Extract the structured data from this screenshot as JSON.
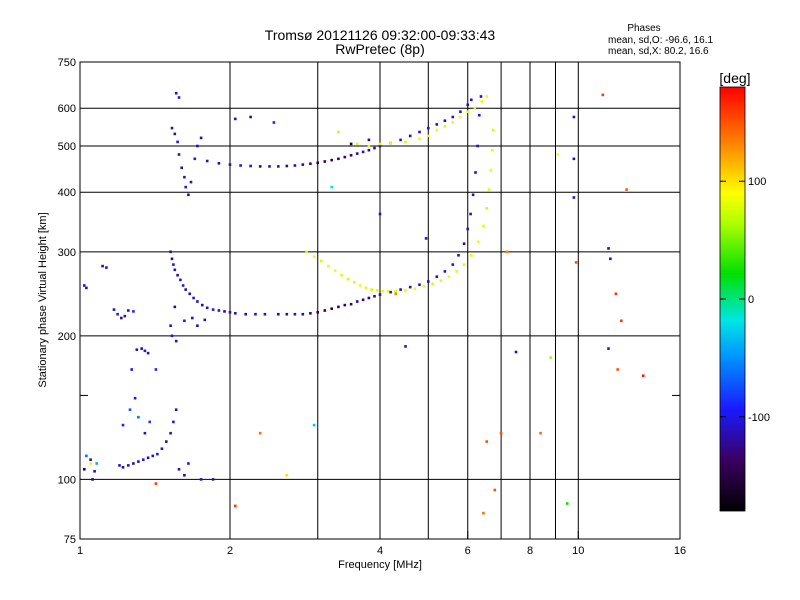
{
  "chart_data": {
    "type": "scatter",
    "title_line1": "Tromsø 20121126 09:32:00-09:33:43",
    "title_line2": "RwPretec (8p)",
    "xlabel": "Frequency [MHz]",
    "ylabel": "Stationary phase Virtual Height [km]",
    "x_scale": "log",
    "y_scale": "log",
    "xlim": [
      1,
      16
    ],
    "ylim": [
      75,
      750
    ],
    "x_ticks": [
      1,
      2,
      4,
      6,
      8,
      10,
      16
    ],
    "x_tick_labels": [
      "1",
      "2",
      "4",
      "6",
      "8",
      "10",
      "16"
    ],
    "x_minor_ticks": [
      3,
      5,
      7,
      9
    ],
    "y_ticks": [
      75,
      100,
      200,
      300,
      400,
      500,
      600,
      750
    ],
    "y_tick_labels": [
      "75",
      "100",
      "200",
      "300",
      "400",
      "500",
      "600",
      "750"
    ],
    "y_minor_ticks": [
      150
    ],
    "grid": true,
    "stats": {
      "title": "Phases",
      "line1": "mean, sd,O:  -96.6, 16.1",
      "line2": "mean, sd,X:   80.2, 16.6"
    },
    "colorbar": {
      "label": "[deg]",
      "range": [
        -180,
        180
      ],
      "ticks": [
        100,
        0,
        -100
      ],
      "tick_labels": [
        "100",
        "0",
        "-100"
      ]
    },
    "series": [
      {
        "mode": "O",
        "points": [
          [
            1.02,
            105,
            -150
          ],
          [
            1.05,
            110,
            -120
          ],
          [
            1.07,
            104,
            -110
          ],
          [
            1.03,
            112,
            -60
          ],
          [
            1.06,
            100,
            -130
          ],
          [
            1.08,
            108,
            -40
          ],
          [
            1.02,
            255,
            -100
          ],
          [
            1.03,
            252,
            -110
          ],
          [
            1.11,
            280,
            -120
          ],
          [
            1.13,
            278,
            -110
          ],
          [
            1.17,
            227,
            -110
          ],
          [
            1.19,
            222,
            -100
          ],
          [
            1.21,
            218,
            -120
          ],
          [
            1.23,
            220,
            -110
          ],
          [
            1.25,
            226,
            -100
          ],
          [
            1.28,
            225,
            -90
          ],
          [
            1.2,
            107,
            -110
          ],
          [
            1.22,
            106,
            -120
          ],
          [
            1.25,
            107,
            -110
          ],
          [
            1.28,
            108,
            -120
          ],
          [
            1.31,
            109,
            -110
          ],
          [
            1.34,
            110,
            -100
          ],
          [
            1.37,
            111,
            -120
          ],
          [
            1.4,
            112,
            -110
          ],
          [
            1.43,
            113,
            -100
          ],
          [
            1.46,
            116,
            -110
          ],
          [
            1.49,
            120,
            -120
          ],
          [
            1.52,
            125,
            -110
          ],
          [
            1.54,
            132,
            -100
          ],
          [
            1.56,
            140,
            -110
          ],
          [
            1.22,
            130,
            -90
          ],
          [
            1.26,
            140,
            -70
          ],
          [
            1.29,
            148,
            -100
          ],
          [
            1.31,
            135,
            -60
          ],
          [
            1.35,
            125,
            -110
          ],
          [
            1.38,
            132,
            -80
          ],
          [
            1.3,
            187,
            -110
          ],
          [
            1.33,
            188,
            -120
          ],
          [
            1.35,
            186,
            -100
          ],
          [
            1.37,
            184,
            -110
          ],
          [
            1.27,
            170,
            -100
          ],
          [
            1.42,
            170,
            -90
          ],
          [
            1.52,
            300,
            -110
          ],
          [
            1.53,
            290,
            -120
          ],
          [
            1.54,
            282,
            -100
          ],
          [
            1.55,
            275,
            -110
          ],
          [
            1.57,
            268,
            -120
          ],
          [
            1.59,
            262,
            -110
          ],
          [
            1.61,
            255,
            -100
          ],
          [
            1.63,
            250,
            -120
          ],
          [
            1.66,
            245,
            -110
          ],
          [
            1.69,
            240,
            -100
          ],
          [
            1.72,
            236,
            -110
          ],
          [
            1.76,
            232,
            -120
          ],
          [
            1.8,
            229,
            -110
          ],
          [
            1.85,
            227,
            -100
          ],
          [
            1.9,
            226,
            -110
          ],
          [
            1.95,
            225,
            -120
          ],
          [
            2.0,
            224,
            -110
          ],
          [
            1.52,
            210,
            -110
          ],
          [
            1.53,
            200,
            -100
          ],
          [
            1.55,
            230,
            -120
          ],
          [
            1.56,
            195,
            -110
          ],
          [
            1.62,
            215,
            -100
          ],
          [
            1.68,
            218,
            -110
          ],
          [
            1.72,
            210,
            -120
          ],
          [
            1.78,
            216,
            -110
          ],
          [
            2.05,
            223,
            -110
          ],
          [
            2.15,
            222,
            -120
          ],
          [
            2.25,
            222,
            -110
          ],
          [
            2.35,
            222,
            -110
          ],
          [
            2.5,
            222,
            -120
          ],
          [
            2.6,
            222,
            -115
          ],
          [
            2.7,
            222,
            -110
          ],
          [
            2.8,
            222,
            -120
          ],
          [
            2.9,
            223,
            -130
          ],
          [
            3.0,
            224,
            -140
          ],
          [
            3.1,
            226,
            -150
          ],
          [
            3.2,
            228,
            -145
          ],
          [
            3.3,
            230,
            -140
          ],
          [
            3.4,
            232,
            -135
          ],
          [
            3.5,
            233,
            -130
          ],
          [
            3.6,
            236,
            -120
          ],
          [
            3.7,
            238,
            -125
          ],
          [
            3.8,
            240,
            -130
          ],
          [
            3.9,
            242,
            -120
          ],
          [
            4.0,
            244,
            -110
          ],
          [
            4.2,
            247,
            -110
          ],
          [
            4.4,
            250,
            -115
          ],
          [
            4.6,
            253,
            -110
          ],
          [
            4.8,
            256,
            -105
          ],
          [
            5.0,
            260,
            -110
          ],
          [
            5.2,
            266,
            -115
          ],
          [
            5.4,
            273,
            -110
          ],
          [
            5.6,
            282,
            -105
          ],
          [
            5.75,
            295,
            -110
          ],
          [
            5.9,
            312,
            -115
          ],
          [
            6.0,
            335,
            -110
          ],
          [
            6.08,
            360,
            -105
          ],
          [
            6.15,
            395,
            -110
          ],
          [
            6.22,
            440,
            -115
          ],
          [
            6.28,
            500,
            -110
          ],
          [
            6.33,
            580,
            -105
          ],
          [
            6.38,
            635,
            -110
          ],
          [
            1.53,
            545,
            -110
          ],
          [
            1.55,
            530,
            -120
          ],
          [
            1.57,
            510,
            -100
          ],
          [
            1.58,
            480,
            -110
          ],
          [
            1.6,
            450,
            -120
          ],
          [
            1.62,
            430,
            -110
          ],
          [
            1.63,
            410,
            -100
          ],
          [
            1.65,
            395,
            -120
          ],
          [
            1.67,
            420,
            -110
          ],
          [
            1.7,
            470,
            -100
          ],
          [
            1.72,
            500,
            -110
          ],
          [
            1.75,
            520,
            -120
          ],
          [
            1.56,
            645,
            -110
          ],
          [
            1.58,
            632,
            -100
          ],
          [
            1.8,
            465,
            -110
          ],
          [
            1.9,
            460,
            -120
          ],
          [
            2.0,
            457,
            -110
          ],
          [
            2.1,
            455,
            -100
          ],
          [
            2.2,
            454,
            -110
          ],
          [
            2.3,
            453,
            -120
          ],
          [
            2.4,
            453,
            -110
          ],
          [
            2.5,
            453,
            -110
          ],
          [
            2.6,
            454,
            -120
          ],
          [
            2.7,
            455,
            -110
          ],
          [
            2.8,
            457,
            -120
          ],
          [
            2.9,
            459,
            -130
          ],
          [
            3.0,
            461,
            -140
          ],
          [
            3.1,
            464,
            -145
          ],
          [
            3.2,
            467,
            -140
          ],
          [
            3.3,
            470,
            -135
          ],
          [
            3.4,
            474,
            -130
          ],
          [
            3.5,
            478,
            -125
          ],
          [
            3.6,
            482,
            -120
          ],
          [
            3.7,
            486,
            -110
          ],
          [
            3.8,
            490,
            -115
          ],
          [
            3.9,
            495,
            -110
          ],
          [
            4.0,
            500,
            -120
          ],
          [
            4.2,
            507,
            -110
          ],
          [
            4.4,
            515,
            -110
          ],
          [
            4.6,
            525,
            -115
          ],
          [
            4.8,
            535,
            -110
          ],
          [
            5.0,
            545,
            -105
          ],
          [
            5.2,
            555,
            -110
          ],
          [
            5.4,
            565,
            -115
          ],
          [
            5.6,
            575,
            -110
          ],
          [
            5.8,
            590,
            -105
          ],
          [
            6.0,
            610,
            -110
          ],
          [
            6.1,
            625,
            -110
          ],
          [
            2.05,
            570,
            -110
          ],
          [
            2.2,
            575,
            -120
          ],
          [
            2.45,
            560,
            -90
          ],
          [
            3.5,
            505,
            -160
          ],
          [
            3.8,
            515,
            -130
          ],
          [
            4.5,
            190,
            -110
          ],
          [
            4.0,
            360,
            -110
          ],
          [
            4.95,
            320,
            -110
          ],
          [
            7.5,
            185,
            -110
          ],
          [
            9.8,
            575,
            -110
          ],
          [
            9.8,
            470,
            -110
          ],
          [
            9.8,
            390,
            -110
          ],
          [
            11.5,
            305,
            -110
          ],
          [
            11.6,
            290,
            -110
          ],
          [
            11.5,
            188,
            -110
          ],
          [
            1.58,
            105,
            -110
          ],
          [
            1.62,
            102,
            -120
          ],
          [
            1.65,
            108,
            -100
          ],
          [
            1.75,
            100,
            -110
          ],
          [
            1.85,
            100,
            -120
          ]
        ]
      },
      {
        "mode": "X",
        "points": [
          [
            2.85,
            300,
            80
          ],
          [
            2.95,
            293,
            85
          ],
          [
            3.05,
            287,
            75
          ],
          [
            3.15,
            280,
            80
          ],
          [
            3.25,
            274,
            85
          ],
          [
            3.35,
            268,
            80
          ],
          [
            3.45,
            263,
            75
          ],
          [
            3.55,
            259,
            80
          ],
          [
            3.65,
            255,
            85
          ],
          [
            3.75,
            252,
            80
          ],
          [
            3.85,
            250,
            75
          ],
          [
            3.95,
            249,
            80
          ],
          [
            4.05,
            248,
            85
          ],
          [
            4.15,
            248,
            80
          ],
          [
            4.3,
            248,
            75
          ],
          [
            4.5,
            249,
            80
          ],
          [
            4.7,
            251,
            85
          ],
          [
            4.9,
            254,
            80
          ],
          [
            5.1,
            257,
            75
          ],
          [
            5.3,
            261,
            80
          ],
          [
            5.5,
            266,
            85
          ],
          [
            5.7,
            273,
            80
          ],
          [
            5.9,
            282,
            75
          ],
          [
            6.1,
            295,
            80
          ],
          [
            6.3,
            315,
            85
          ],
          [
            6.45,
            340,
            80
          ],
          [
            6.55,
            370,
            75
          ],
          [
            6.62,
            405,
            80
          ],
          [
            6.67,
            445,
            85
          ],
          [
            6.72,
            490,
            80
          ],
          [
            6.75,
            540,
            75
          ],
          [
            3.6,
            505,
            80
          ],
          [
            3.8,
            500,
            85
          ],
          [
            4.0,
            505,
            80
          ],
          [
            4.2,
            507,
            85
          ],
          [
            4.5,
            510,
            80
          ],
          [
            4.8,
            518,
            85
          ],
          [
            5.0,
            525,
            80
          ],
          [
            5.2,
            540,
            85
          ],
          [
            5.4,
            550,
            75
          ],
          [
            5.6,
            560,
            80
          ],
          [
            5.8,
            575,
            85
          ],
          [
            6.0,
            590,
            80
          ],
          [
            6.2,
            600,
            75
          ],
          [
            6.4,
            620,
            80
          ],
          [
            6.55,
            635,
            85
          ],
          [
            3.3,
            535,
            70
          ],
          [
            4.3,
            245,
            130
          ],
          [
            6.45,
            85,
            140
          ],
          [
            6.55,
            120,
            150
          ],
          [
            6.8,
            95,
            150
          ],
          [
            7.0,
            125,
            150
          ],
          [
            7.2,
            300,
            130
          ],
          [
            8.4,
            125,
            140
          ],
          [
            8.8,
            180,
            60
          ],
          [
            9.1,
            480,
            90
          ],
          [
            9.9,
            285,
            150
          ],
          [
            11.2,
            640,
            160
          ],
          [
            11.9,
            245,
            160
          ],
          [
            12.2,
            215,
            160
          ],
          [
            12.0,
            170,
            150
          ],
          [
            13.5,
            165,
            170
          ],
          [
            12.5,
            405,
            150
          ],
          [
            2.3,
            125,
            140
          ],
          [
            2.6,
            102,
            100
          ],
          [
            1.05,
            108,
            80
          ],
          [
            1.42,
            98,
            160
          ],
          [
            9.5,
            89,
            20
          ],
          [
            2.95,
            130,
            -30
          ],
          [
            3.2,
            410,
            -20
          ],
          [
            2.05,
            88,
            160
          ]
        ]
      }
    ]
  }
}
